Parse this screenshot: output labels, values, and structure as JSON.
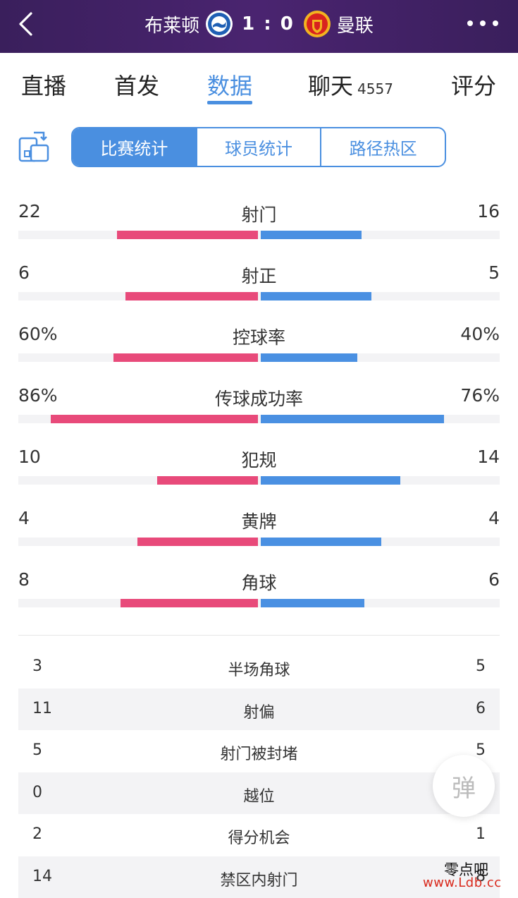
{
  "header": {
    "home_team": "布莱顿",
    "score": "1 : 0",
    "away_team": "曼联",
    "icons": {
      "back": "back-chevron-icon",
      "home_crest": "brighton-crest-icon",
      "away_crest": "manutd-crest-icon",
      "more": "more-dots-icon"
    }
  },
  "tabs": [
    {
      "label": "直播"
    },
    {
      "label": "首发"
    },
    {
      "label": "数据",
      "active": true
    },
    {
      "label": "聊天",
      "count": "4557"
    },
    {
      "label": "评分"
    }
  ],
  "segment": {
    "options": [
      "比赛统计",
      "球员统计",
      "路径热区"
    ],
    "selected": "比赛统计",
    "switch_icon": "switch-side-icon"
  },
  "colors": {
    "home": "#e84a7a",
    "away": "#4a90e2",
    "accent": "#4a8fe0",
    "header": "#3a1f5c"
  },
  "stats": [
    {
      "name": "射门",
      "home": "22",
      "away": "16",
      "home_frac": 0.585,
      "away_frac": 0.42
    },
    {
      "name": "射正",
      "home": "6",
      "away": "5",
      "home_frac": 0.55,
      "away_frac": 0.46
    },
    {
      "name": "控球率",
      "home": "60%",
      "away": "40%",
      "home_frac": 0.6,
      "away_frac": 0.4
    },
    {
      "name": "传球成功率",
      "home": "86%",
      "away": "76%",
      "home_frac": 0.86,
      "away_frac": 0.76
    },
    {
      "name": "犯规",
      "home": "10",
      "away": "14",
      "home_frac": 0.42,
      "away_frac": 0.58
    },
    {
      "name": "黄牌",
      "home": "4",
      "away": "4",
      "home_frac": 0.5,
      "away_frac": 0.5
    },
    {
      "name": "角球",
      "home": "8",
      "away": "6",
      "home_frac": 0.57,
      "away_frac": 0.43
    }
  ],
  "table": [
    {
      "name": "半场角球",
      "home": "3",
      "away": "5"
    },
    {
      "name": "射偏",
      "home": "11",
      "away": "6"
    },
    {
      "name": "射门被封堵",
      "home": "5",
      "away": "5"
    },
    {
      "name": "越位",
      "home": "0",
      "away": ""
    },
    {
      "name": "得分机会",
      "home": "2",
      "away": "1"
    },
    {
      "name": "禁区内射门",
      "home": "14",
      "away": "8"
    }
  ],
  "danmu_label": "弹",
  "watermark": {
    "line1": "零点吧",
    "line2": "www.Ldb.cc"
  }
}
